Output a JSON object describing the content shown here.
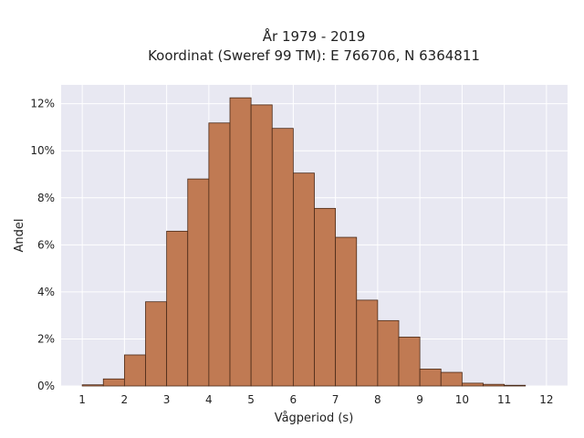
{
  "chart_data": {
    "type": "bar",
    "title_line1": "År 1979 - 2019",
    "title_line2": "Koordinat (Sweref 99 TM): E 766706, N 6364811",
    "xlabel": "Vågperiod (s)",
    "ylabel": "Andel",
    "xlim": [
      0.5,
      12.5
    ],
    "ylim": [
      0,
      0.128
    ],
    "x_ticks": [
      1,
      2,
      3,
      4,
      5,
      6,
      7,
      8,
      9,
      10,
      11,
      12
    ],
    "x_tick_labels": [
      "1",
      "2",
      "3",
      "4",
      "5",
      "6",
      "7",
      "8",
      "9",
      "10",
      "11",
      "12"
    ],
    "y_ticks": [
      0,
      0.02,
      0.04,
      0.06,
      0.08,
      0.1,
      0.12
    ],
    "y_tick_labels": [
      "0%",
      "2%",
      "4%",
      "6%",
      "8%",
      "10%",
      "12%"
    ],
    "bin_width": 0.5,
    "bin_starts": [
      1.0,
      1.5,
      2.0,
      2.5,
      3.0,
      3.5,
      4.0,
      4.5,
      5.0,
      5.5,
      6.0,
      6.5,
      7.0,
      7.5,
      8.0,
      8.5,
      9.0,
      9.5,
      10.0,
      10.5,
      11.0
    ],
    "values": [
      0.0005,
      0.003,
      0.0132,
      0.0358,
      0.0658,
      0.088,
      0.1118,
      0.1225,
      0.1195,
      0.1095,
      0.0905,
      0.0755,
      0.0632,
      0.0365,
      0.0278,
      0.0208,
      0.0072,
      0.0058,
      0.0012,
      0.0007,
      0.0003
    ],
    "grid": true,
    "colors": {
      "plot_background": "#e8e8f2",
      "bar_fill": "#c07a53",
      "bar_edge": "#4a2a18",
      "grid": "#ffffff"
    }
  }
}
